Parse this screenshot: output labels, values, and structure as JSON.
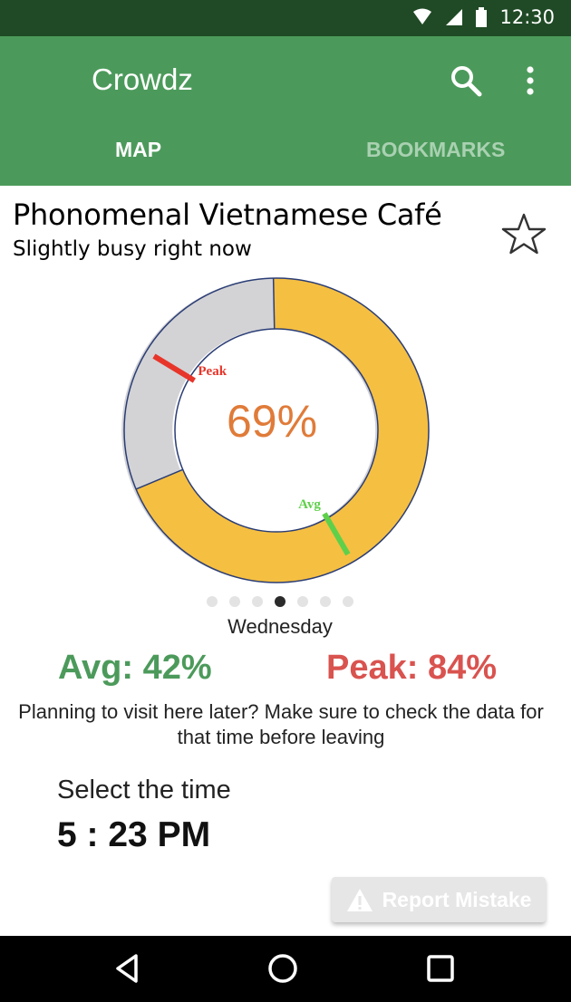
{
  "status_bar": {
    "time": "12:30"
  },
  "app_bar": {
    "title": "Crowdz",
    "tabs": [
      {
        "label": "MAP",
        "selected": true
      },
      {
        "label": "BOOKMARKS",
        "selected": false
      }
    ]
  },
  "place": {
    "name": "Phonomenal Vietnamese Café",
    "status": "Slightly busy right now"
  },
  "gauge": {
    "current_label": "69%",
    "current_percent": 69,
    "avg_marker_label": "Avg",
    "peak_marker_label": "Peak",
    "avg_percent": 42,
    "peak_percent": 84,
    "colors": {
      "filled": "#f5bf42",
      "empty": "#d3d3d6",
      "avg": "#5fd04a",
      "peak": "#e8352a",
      "value": "#e07b39"
    }
  },
  "day_pager": {
    "count": 7,
    "active_index": 3,
    "label": "Wednesday"
  },
  "stats": {
    "avg": "Avg: 42%",
    "peak": "Peak: 84%"
  },
  "hint": "Planning to visit here later? Make sure to check the data for that time before leaving",
  "time_select": {
    "label": "Select the time",
    "value": "5 : 23 PM"
  },
  "report_button": {
    "label": "Report Mistake"
  },
  "colors": {
    "app_green": "#4c9a5b",
    "status_dark": "#1f4a25",
    "avg_green": "#4c9a5b",
    "peak_red": "#d9534f"
  },
  "icons": [
    "wifi-icon",
    "signal-icon",
    "battery-icon",
    "search-icon",
    "more-vert-icon",
    "star-outline-icon",
    "warning-icon",
    "back-icon",
    "home-icon",
    "recents-icon"
  ]
}
